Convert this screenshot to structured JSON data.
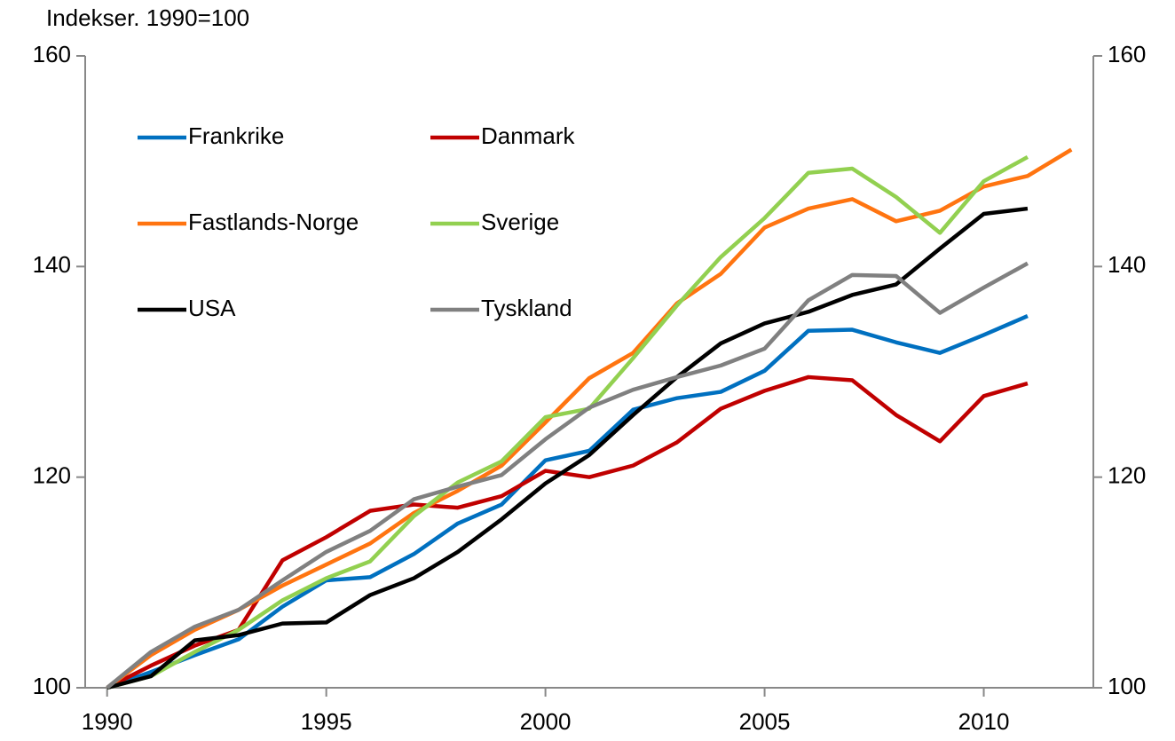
{
  "chart_data": {
    "type": "line",
    "title": "Indekser. 1990=100",
    "x": [
      1990,
      1991,
      1992,
      1993,
      1994,
      1995,
      1996,
      1997,
      1998,
      1999,
      2000,
      2001,
      2002,
      2003,
      2004,
      2005,
      2006,
      2007,
      2008,
      2009,
      2010,
      2011,
      2012
    ],
    "xlim": [
      1989.5,
      2012.5
    ],
    "xticks": [
      1990,
      1995,
      2000,
      2005,
      2010
    ],
    "ylim": [
      100,
      160
    ],
    "yticks": [
      100,
      120,
      140,
      160
    ],
    "y2lim": [
      100,
      160
    ],
    "y2ticks": [
      100,
      120,
      140,
      160
    ],
    "grid": false,
    "series": [
      {
        "name": "Frankrike",
        "color": "#0070c0",
        "values": [
          100,
          101.5,
          103.1,
          104.6,
          107.7,
          110.2,
          110.5,
          112.7,
          115.6,
          117.4,
          121.6,
          122.5,
          126.4,
          127.5,
          128.1,
          130.1,
          133.9,
          134.0,
          132.8,
          131.8,
          133.5,
          135.3,
          null
        ]
      },
      {
        "name": "Danmark",
        "color": "#c00000",
        "values": [
          100,
          102.1,
          104.0,
          105.5,
          112.1,
          114.3,
          116.8,
          117.4,
          117.1,
          118.2,
          120.6,
          120.0,
          121.1,
          123.3,
          126.5,
          128.2,
          129.5,
          129.2,
          125.9,
          123.4,
          127.7,
          128.9,
          null
        ]
      },
      {
        "name": "Fastlands-Norge",
        "color": "#ff7410",
        "values": [
          100,
          103.1,
          105.5,
          107.4,
          109.7,
          111.7,
          113.7,
          116.6,
          118.7,
          121.1,
          125.2,
          129.4,
          131.8,
          136.5,
          139.3,
          143.7,
          145.5,
          146.4,
          144.3,
          145.3,
          147.6,
          148.6,
          151.1
        ]
      },
      {
        "name": "Sverige",
        "color": "#92d050",
        "values": [
          100,
          101.1,
          103.4,
          105.5,
          108.3,
          110.4,
          112.0,
          116.3,
          119.5,
          121.5,
          125.7,
          126.5,
          131.3,
          136.3,
          140.9,
          144.6,
          148.9,
          149.3,
          146.6,
          143.2,
          148.1,
          150.4,
          null
        ]
      },
      {
        "name": "USA",
        "color": "#000000",
        "values": [
          100,
          101.1,
          104.5,
          105.0,
          106.1,
          106.2,
          108.8,
          110.4,
          112.9,
          116.0,
          119.4,
          122.1,
          125.9,
          129.5,
          132.7,
          134.6,
          135.7,
          137.3,
          138.3,
          141.7,
          145.0,
          145.5,
          null
        ]
      },
      {
        "name": "Tyskland",
        "color": "#808080",
        "values": [
          100,
          103.4,
          105.8,
          107.4,
          110.2,
          112.9,
          114.9,
          117.9,
          119.1,
          120.2,
          123.6,
          126.6,
          128.3,
          129.5,
          130.6,
          132.2,
          136.8,
          139.2,
          139.1,
          135.6,
          138.0,
          140.3,
          null
        ]
      }
    ]
  }
}
